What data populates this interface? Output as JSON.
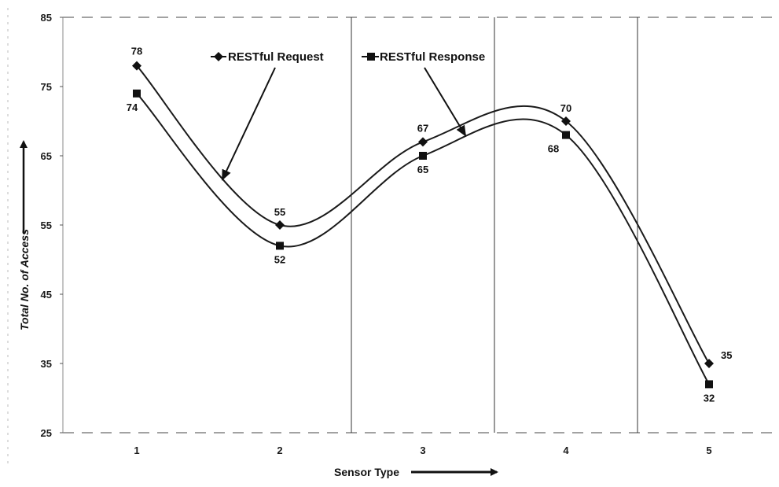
{
  "chart_data": {
    "type": "line",
    "title": "",
    "xlabel": "Sensor Type",
    "ylabel": "Total No. of Access",
    "categories": [
      "1",
      "2",
      "3",
      "4",
      "5"
    ],
    "ylim": [
      25,
      85
    ],
    "yticks": [
      25,
      35,
      45,
      55,
      65,
      75,
      85
    ],
    "grid": "vertical dividers between categories 2-3, 3-4, 4-5; dashed top and bottom borders",
    "smooth": true,
    "legend_placement": "top-center, inside plot",
    "series": [
      {
        "name": "RESTful Request",
        "marker": "diamond",
        "values": [
          78,
          55,
          67,
          70,
          35
        ],
        "color": "#1a1a1a"
      },
      {
        "name": "RESTful Response",
        "marker": "square",
        "values": [
          74,
          52,
          65,
          68,
          32
        ],
        "color": "#1a1a1a"
      }
    ],
    "annotations": [
      "arrow from legend 'RESTful Request' to its curve",
      "arrow from legend 'RESTful Response' to its curve"
    ]
  }
}
